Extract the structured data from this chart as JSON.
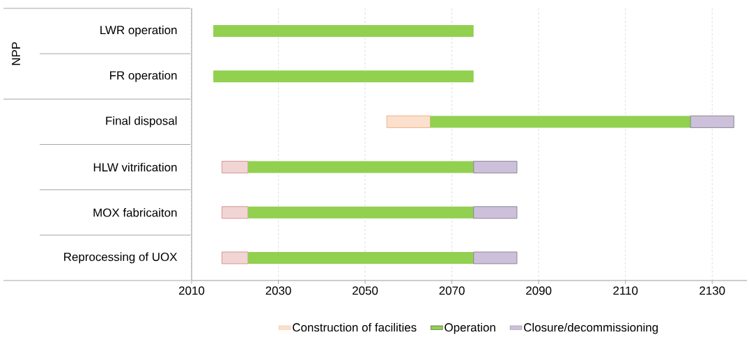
{
  "chart_data": {
    "type": "bar",
    "orientation": "horizontal",
    "categories": [
      "LWR operation",
      "FR operation",
      "Final disposal",
      "HLW vitrification",
      "MOX fabricaiton",
      "Reprocessing of UOX"
    ],
    "series": [
      {
        "name": "Construction of facilities",
        "color": "#f4b183",
        "colors": [
          "#f4b183",
          "#f4b183",
          "#f4b183",
          "#d99694",
          "#d99694",
          "#d99694"
        ],
        "base": [
          null,
          null,
          2055,
          2017,
          2017,
          2017
        ],
        "values": [
          null,
          null,
          10,
          6,
          6,
          6
        ]
      },
      {
        "name": "Operation",
        "color": "#92d050",
        "base": [
          2015,
          2015,
          2065,
          2023,
          2023,
          2023
        ],
        "values": [
          60,
          60,
          60,
          52,
          52,
          52
        ]
      },
      {
        "name": "Closure/decommissioning",
        "color": "#ccc0da",
        "base": [
          null,
          null,
          2125,
          2075,
          2075,
          2075
        ],
        "values": [
          null,
          null,
          10,
          10,
          10,
          10
        ]
      }
    ],
    "xlim": [
      2010,
      2138
    ],
    "xticks": [
      2010,
      2030,
      2050,
      2070,
      2090,
      2110,
      2130
    ],
    "grid": "x",
    "legend": "bottom",
    "annotations": [
      "NPP"
    ]
  }
}
